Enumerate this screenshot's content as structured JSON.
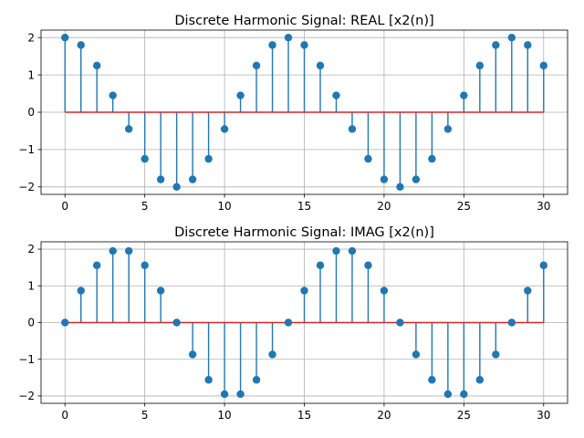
{
  "chart_data": [
    {
      "type": "stem",
      "title": "Discrete Harmonic Signal: REAL [x2(n)]",
      "xlim": [
        -1.5,
        31.5
      ],
      "ylim": [
        -2.2,
        2.2
      ],
      "xticks": [
        0,
        5,
        10,
        15,
        20,
        25,
        30
      ],
      "yticks": [
        -2,
        -1,
        0,
        1,
        2
      ],
      "grid": true,
      "x": [
        0,
        1,
        2,
        3,
        4,
        5,
        6,
        7,
        8,
        9,
        10,
        11,
        12,
        13,
        14,
        15,
        16,
        17,
        18,
        19,
        20,
        21,
        22,
        23,
        24,
        25,
        26,
        27,
        28,
        29,
        30
      ],
      "values": [
        2.0,
        1.8,
        1.25,
        0.45,
        -0.45,
        -1.25,
        -1.8,
        -2.0,
        -1.8,
        -1.25,
        -0.45,
        0.45,
        1.25,
        1.8,
        2.0,
        1.8,
        1.25,
        0.45,
        -0.45,
        -1.25,
        -1.8,
        -2.0,
        -1.8,
        -1.25,
        -0.45,
        0.45,
        1.25,
        1.8,
        2.0,
        1.8,
        1.25
      ],
      "colors": {
        "stem": "#1f77b4",
        "marker": "#1f77b4",
        "baseline": "#d62728"
      }
    },
    {
      "type": "stem",
      "title": "Discrete Harmonic Signal: IMAG [x2(n)]",
      "xlim": [
        -1.5,
        31.5
      ],
      "ylim": [
        -2.2,
        2.2
      ],
      "xticks": [
        0,
        5,
        10,
        15,
        20,
        25,
        30
      ],
      "yticks": [
        -2,
        -1,
        0,
        1,
        2
      ],
      "grid": true,
      "x": [
        0,
        1,
        2,
        3,
        4,
        5,
        6,
        7,
        8,
        9,
        10,
        11,
        12,
        13,
        14,
        15,
        16,
        17,
        18,
        19,
        20,
        21,
        22,
        23,
        24,
        25,
        26,
        27,
        28,
        29,
        30
      ],
      "values": [
        0.0,
        0.87,
        1.56,
        1.95,
        1.95,
        1.56,
        0.87,
        0.0,
        -0.87,
        -1.56,
        -1.95,
        -1.95,
        -1.56,
        -0.87,
        0.0,
        0.87,
        1.56,
        1.95,
        1.95,
        1.56,
        0.87,
        0.0,
        -0.87,
        -1.56,
        -1.95,
        -1.95,
        -1.56,
        -0.87,
        0.0,
        0.87,
        1.56
      ],
      "colors": {
        "stem": "#1f77b4",
        "marker": "#1f77b4",
        "baseline": "#d62728"
      }
    }
  ]
}
